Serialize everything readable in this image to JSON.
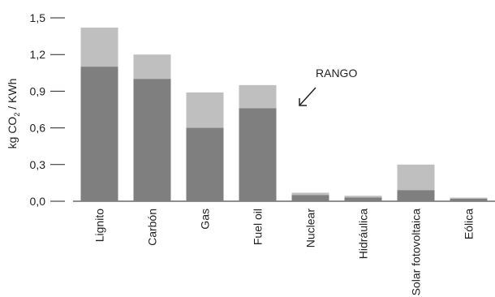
{
  "chart_data": {
    "type": "bar",
    "stacked_range": true,
    "categories": [
      "Lignito",
      "Carbón",
      "Gas",
      "Fuel oil",
      "Nuclear",
      "Hidráulica",
      "Solar fotovoltaica",
      "Eólica"
    ],
    "series": [
      {
        "values": [
          1.1,
          1.0,
          0.6,
          0.76,
          0.05,
          0.03,
          0.09,
          0.02
        ],
        "color": "#7f7f7f"
      },
      {
        "values": [
          1.42,
          1.2,
          0.89,
          0.95,
          0.07,
          0.045,
          0.3,
          0.03
        ],
        "color": "#bfbfbf"
      }
    ],
    "yticks": [
      "0,0",
      "0,3",
      "0,6",
      "0,9",
      "1,2",
      "1,5"
    ],
    "ytick_values": [
      0,
      0.3,
      0.6,
      0.9,
      1.2,
      1.5
    ],
    "ylim": [
      0,
      1.5
    ],
    "ylabel": {
      "pre": "kg CO",
      "sub": "2",
      "post": " / KWh"
    },
    "xlabel": "",
    "title": "",
    "annotation": {
      "text": "RANGO",
      "points_to": "Fuel oil"
    },
    "grid": false
  }
}
